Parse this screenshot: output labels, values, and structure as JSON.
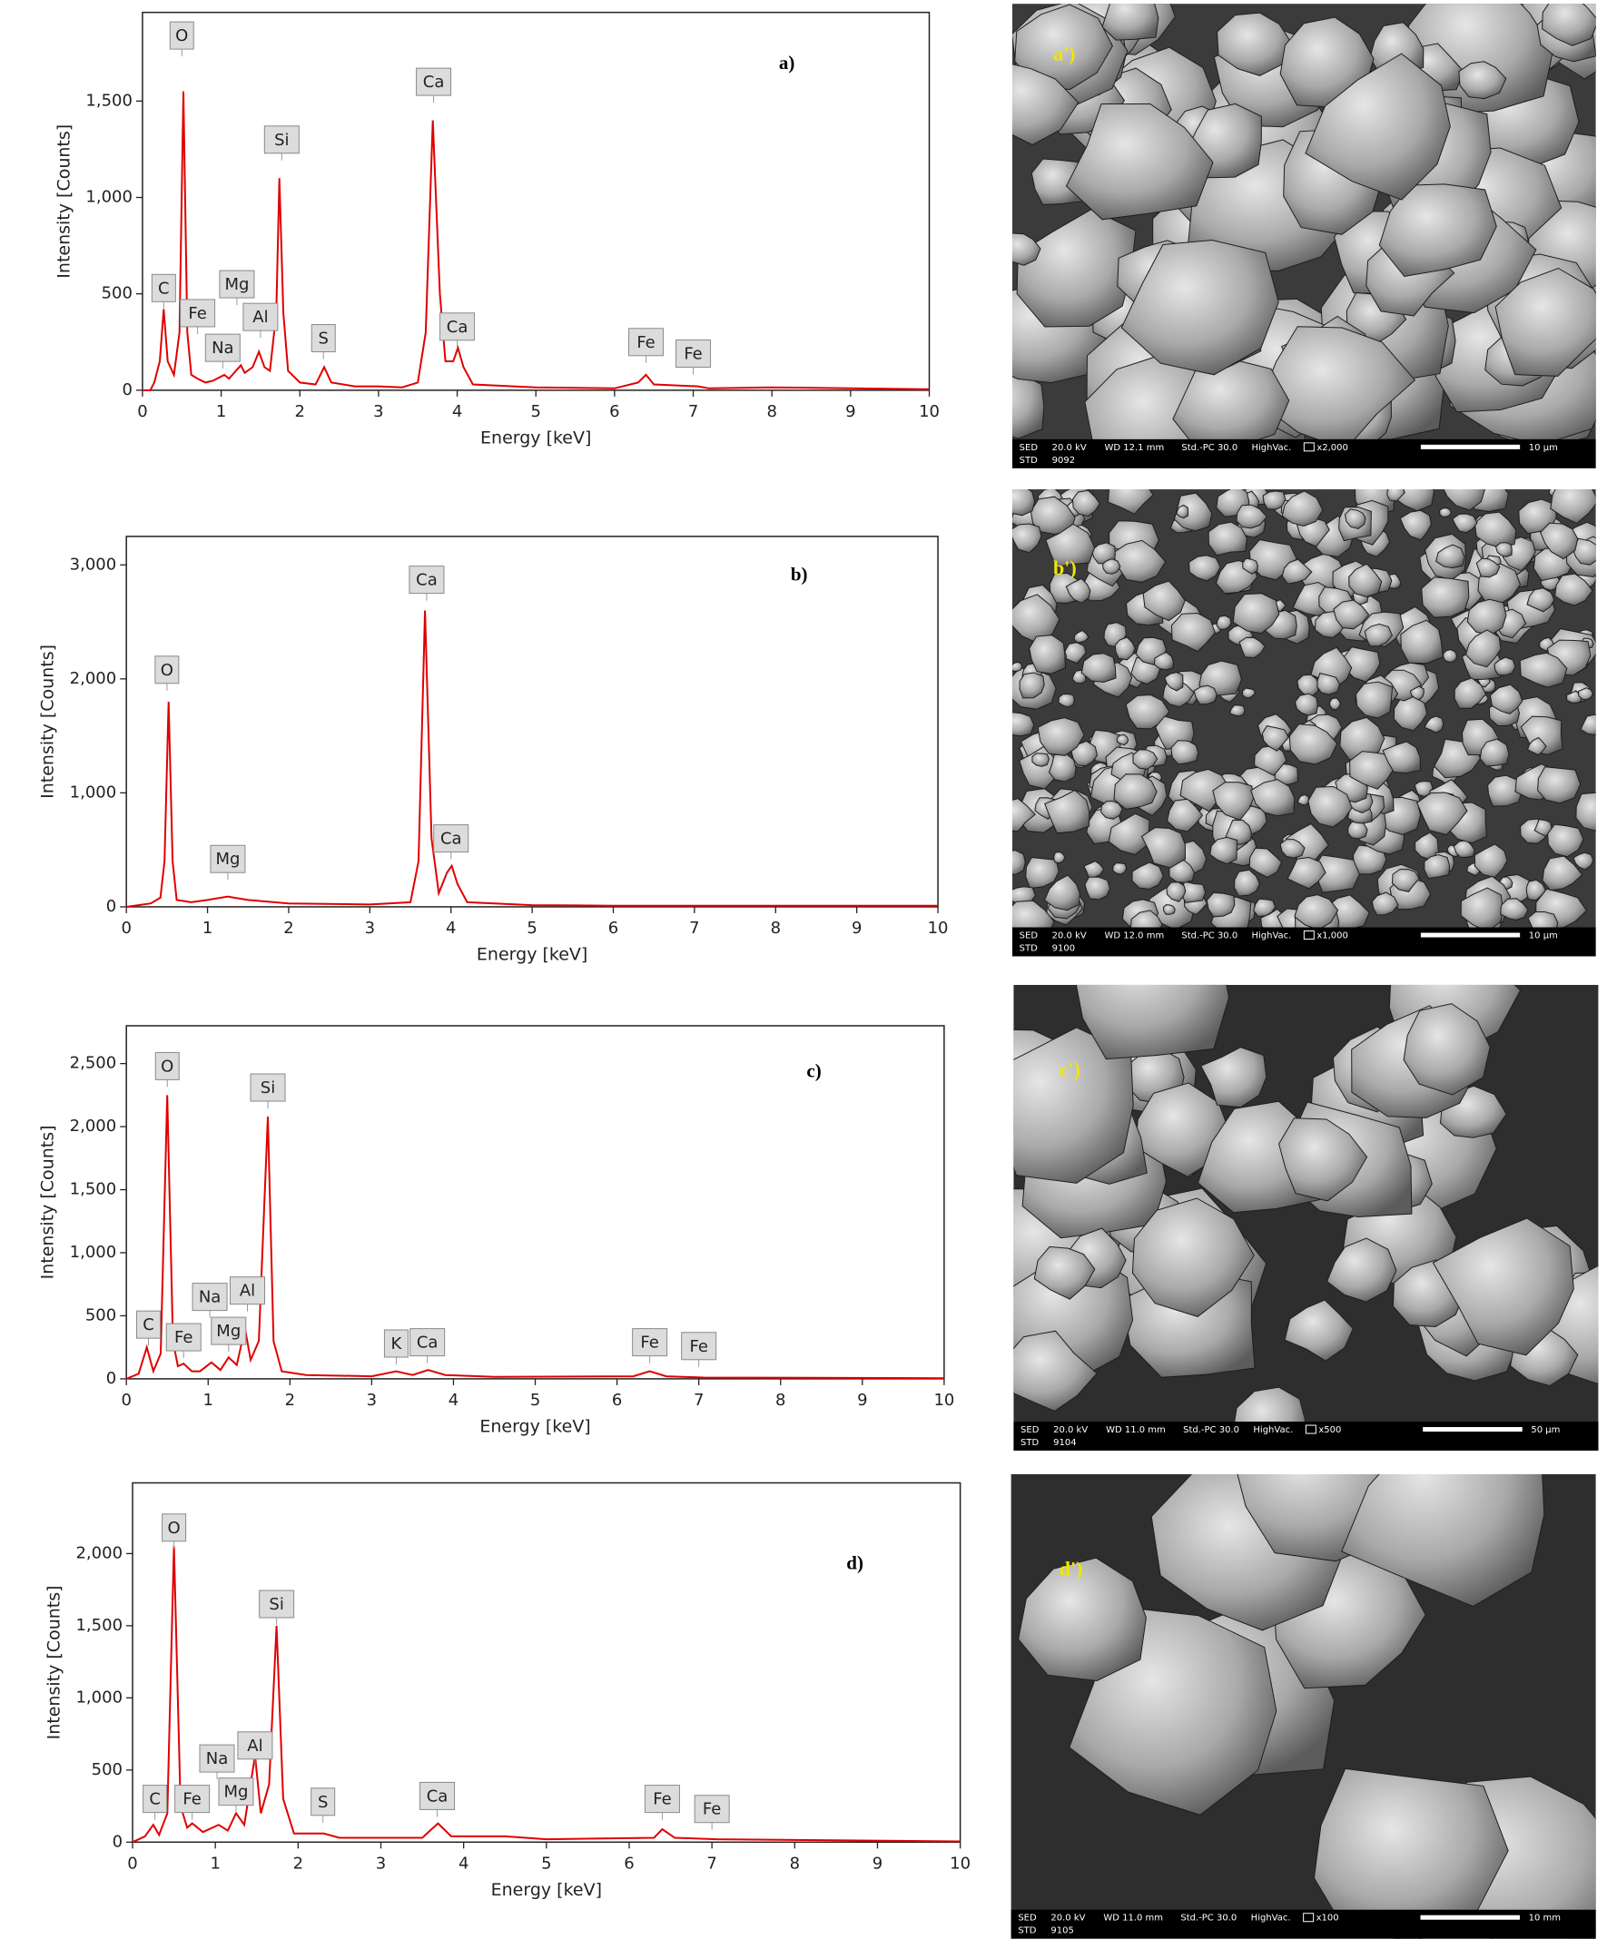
{
  "chart_data": [
    {
      "type": "line",
      "title": "a)",
      "x_label": "Energy [keV]",
      "y_label": "Intensity [Counts]",
      "color": "#e00000",
      "xlim": [
        0,
        10
      ],
      "ylim": [
        0,
        1960
      ],
      "xticks": [
        0,
        1,
        2,
        3,
        4,
        5,
        6,
        7,
        8,
        9,
        10
      ],
      "yticks": [
        0,
        500,
        {
          "value": 1000,
          "label": "1,000"
        },
        {
          "value": 1500,
          "label": "1,500"
        }
      ],
      "x": [
        0,
        0.1,
        0.15,
        0.22,
        0.27,
        0.32,
        0.4,
        0.47,
        0.52,
        0.57,
        0.62,
        0.7,
        0.8,
        0.9,
        1.04,
        1.1,
        1.25,
        1.3,
        1.4,
        1.48,
        1.55,
        1.62,
        1.7,
        1.74,
        1.79,
        1.85,
        2.0,
        2.2,
        2.31,
        2.4,
        2.7,
        3.0,
        3.3,
        3.5,
        3.6,
        3.69,
        3.78,
        3.85,
        3.95,
        4.01,
        4.08,
        4.2,
        5.0,
        6.0,
        6.3,
        6.4,
        6.5,
        7.06,
        7.2,
        8.0,
        10
      ],
      "values": [
        0,
        0,
        40,
        150,
        420,
        150,
        80,
        300,
        1550,
        300,
        80,
        60,
        40,
        50,
        80,
        60,
        130,
        90,
        120,
        200,
        120,
        100,
        400,
        1100,
        400,
        100,
        40,
        30,
        120,
        40,
        20,
        20,
        15,
        40,
        300,
        1400,
        500,
        150,
        150,
        220,
        120,
        30,
        15,
        10,
        40,
        80,
        30,
        20,
        10,
        15,
        5
      ],
      "annotations": [
        {
          "text": "C",
          "x": 0.27,
          "y": 530
        },
        {
          "text": "O",
          "x": 0.5,
          "y": 1840
        },
        {
          "text": "Fe",
          "x": 0.7,
          "y": 400
        },
        {
          "text": "Na",
          "x": 1.02,
          "y": 220
        },
        {
          "text": "Mg",
          "x": 1.2,
          "y": 550
        },
        {
          "text": "Al",
          "x": 1.5,
          "y": 380
        },
        {
          "text": "Si",
          "x": 1.77,
          "y": 1300
        },
        {
          "text": "S",
          "x": 2.3,
          "y": 270
        },
        {
          "text": "Ca",
          "x": 3.7,
          "y": 1600
        },
        {
          "text": "Ca",
          "x": 4.0,
          "y": 330
        },
        {
          "text": "Fe",
          "x": 6.4,
          "y": 250
        },
        {
          "text": "Fe",
          "x": 7.0,
          "y": 190
        }
      ]
    },
    {
      "type": "line",
      "title": "b)",
      "x_label": "Energy [keV]",
      "y_label": "Intensity [Counts]",
      "color": "#e00000",
      "xlim": [
        0,
        10
      ],
      "ylim": [
        0,
        3250
      ],
      "xticks": [
        0,
        1,
        2,
        3,
        4,
        5,
        6,
        7,
        8,
        9,
        10
      ],
      "yticks": [
        0,
        {
          "value": 1000,
          "label": "1,000"
        },
        {
          "value": 2000,
          "label": "2,000"
        },
        {
          "value": 3000,
          "label": "3,000"
        }
      ],
      "x": [
        0,
        0.3,
        0.42,
        0.47,
        0.52,
        0.57,
        0.62,
        0.8,
        1.0,
        1.25,
        1.5,
        2.0,
        3.0,
        3.5,
        3.6,
        3.68,
        3.76,
        3.85,
        3.95,
        4.01,
        4.08,
        4.2,
        5,
        6,
        8,
        10
      ],
      "values": [
        0,
        30,
        80,
        400,
        1800,
        400,
        60,
        40,
        60,
        90,
        60,
        30,
        20,
        40,
        400,
        2600,
        600,
        120,
        300,
        360,
        200,
        40,
        15,
        10,
        10,
        10
      ],
      "annotations": [
        {
          "text": "O",
          "x": 0.5,
          "y": 2080
        },
        {
          "text": "Mg",
          "x": 1.25,
          "y": 420
        },
        {
          "text": "Ca",
          "x": 3.7,
          "y": 2870
        },
        {
          "text": "Ca",
          "x": 4.0,
          "y": 600
        }
      ]
    },
    {
      "type": "line",
      "title": "c)",
      "x_label": "Energy [keV]",
      "y_label": "Intensity [Counts]",
      "color": "#e00000",
      "xlim": [
        0,
        10
      ],
      "ylim": [
        0,
        2800
      ],
      "xticks": [
        0,
        1,
        2,
        3,
        4,
        5,
        6,
        7,
        8,
        9,
        10
      ],
      "yticks": [
        0,
        500,
        {
          "value": 1000,
          "label": "1,000"
        },
        {
          "value": 1500,
          "label": "1,500"
        },
        {
          "value": 2000,
          "label": "2,000"
        },
        {
          "value": 2500,
          "label": "2,500"
        }
      ],
      "x": [
        0,
        0.15,
        0.25,
        0.33,
        0.42,
        0.5,
        0.57,
        0.63,
        0.7,
        0.8,
        0.9,
        1.04,
        1.15,
        1.25,
        1.35,
        1.45,
        1.52,
        1.62,
        1.73,
        1.8,
        1.9,
        2.2,
        3.0,
        3.3,
        3.5,
        3.69,
        3.9,
        4.5,
        6.2,
        6.4,
        6.6,
        7.06,
        10
      ],
      "values": [
        0,
        40,
        250,
        60,
        200,
        2250,
        300,
        100,
        120,
        60,
        60,
        130,
        70,
        170,
        110,
        400,
        150,
        300,
        2080,
        300,
        60,
        30,
        20,
        60,
        30,
        70,
        30,
        15,
        20,
        60,
        20,
        10,
        5
      ],
      "annotations": [
        {
          "text": "C",
          "x": 0.27,
          "y": 430
        },
        {
          "text": "O",
          "x": 0.5,
          "y": 2480
        },
        {
          "text": "Fe",
          "x": 0.7,
          "y": 330
        },
        {
          "text": "Na",
          "x": 1.02,
          "y": 650
        },
        {
          "text": "Mg",
          "x": 1.25,
          "y": 380
        },
        {
          "text": "Al",
          "x": 1.48,
          "y": 700
        },
        {
          "text": "Si",
          "x": 1.73,
          "y": 2310
        },
        {
          "text": "K",
          "x": 3.3,
          "y": 280
        },
        {
          "text": "Ca",
          "x": 3.68,
          "y": 290
        },
        {
          "text": "Fe",
          "x": 6.4,
          "y": 290
        },
        {
          "text": "Fe",
          "x": 7.0,
          "y": 260
        }
      ]
    },
    {
      "type": "line",
      "title": "d)",
      "x_label": "Energy [keV]",
      "y_label": "Intensity [Counts]",
      "color": "#e00000",
      "xlim": [
        0,
        10
      ],
      "ylim": [
        0,
        2490
      ],
      "xticks": [
        0,
        1,
        2,
        3,
        4,
        5,
        6,
        7,
        8,
        9,
        10
      ],
      "yticks": [
        0,
        500,
        {
          "value": 1000,
          "label": "1,000"
        },
        {
          "value": 1500,
          "label": "1,500"
        },
        {
          "value": 2000,
          "label": "2,000"
        }
      ],
      "x": [
        0,
        0.15,
        0.25,
        0.32,
        0.42,
        0.5,
        0.58,
        0.66,
        0.72,
        0.85,
        1.04,
        1.15,
        1.25,
        1.35,
        1.48,
        1.55,
        1.65,
        1.74,
        1.82,
        1.95,
        2.31,
        2.5,
        3.0,
        3.5,
        3.69,
        3.85,
        4.5,
        5,
        6.3,
        6.4,
        6.55,
        7.06,
        10
      ],
      "values": [
        0,
        40,
        120,
        50,
        200,
        2050,
        250,
        100,
        130,
        70,
        120,
        80,
        200,
        120,
        600,
        200,
        400,
        1500,
        300,
        60,
        60,
        30,
        30,
        30,
        130,
        40,
        40,
        20,
        30,
        90,
        30,
        20,
        5
      ],
      "annotations": [
        {
          "text": "C",
          "x": 0.27,
          "y": 300
        },
        {
          "text": "O",
          "x": 0.5,
          "y": 2180
        },
        {
          "text": "Fe",
          "x": 0.72,
          "y": 300
        },
        {
          "text": "Na",
          "x": 1.02,
          "y": 580
        },
        {
          "text": "Mg",
          "x": 1.25,
          "y": 350
        },
        {
          "text": "Al",
          "x": 1.48,
          "y": 670
        },
        {
          "text": "Si",
          "x": 1.74,
          "y": 1650
        },
        {
          "text": "S",
          "x": 2.3,
          "y": 280
        },
        {
          "text": "Ca",
          "x": 3.68,
          "y": 320
        },
        {
          "text": "Fe",
          "x": 6.4,
          "y": 300
        },
        {
          "text": "Fe",
          "x": 7.0,
          "y": 230
        }
      ]
    }
  ],
  "micrographs": [
    {
      "label": "a')",
      "info": [
        "SED",
        "20.0 kV",
        "WD 12.1 mm",
        "Std.-PC 30.0",
        "HighVac.",
        "x2,000",
        "10 µm"
      ],
      "info2": [
        "STD",
        "9092"
      ]
    },
    {
      "label": "b')",
      "info": [
        "SED",
        "20.0 kV",
        "WD 12.0 mm",
        "Std.-PC 30.0",
        "HighVac.",
        "x1,000",
        "10 µm"
      ],
      "info2": [
        "STD",
        "9100"
      ]
    },
    {
      "label": "c')",
      "info": [
        "SED",
        "20.0 kV",
        "WD 11.0 mm",
        "Std.-PC 30.0",
        "HighVac.",
        "x500",
        "50 µm"
      ],
      "info2": [
        "STD",
        "9104"
      ]
    },
    {
      "label": "d')",
      "info": [
        "SED",
        "20.0 kV",
        "WD 11.0 mm",
        "Std.-PC 30.0",
        "HighVac.",
        "x100",
        "10 mm"
      ],
      "info2": [
        "STD",
        "9105"
      ]
    }
  ]
}
